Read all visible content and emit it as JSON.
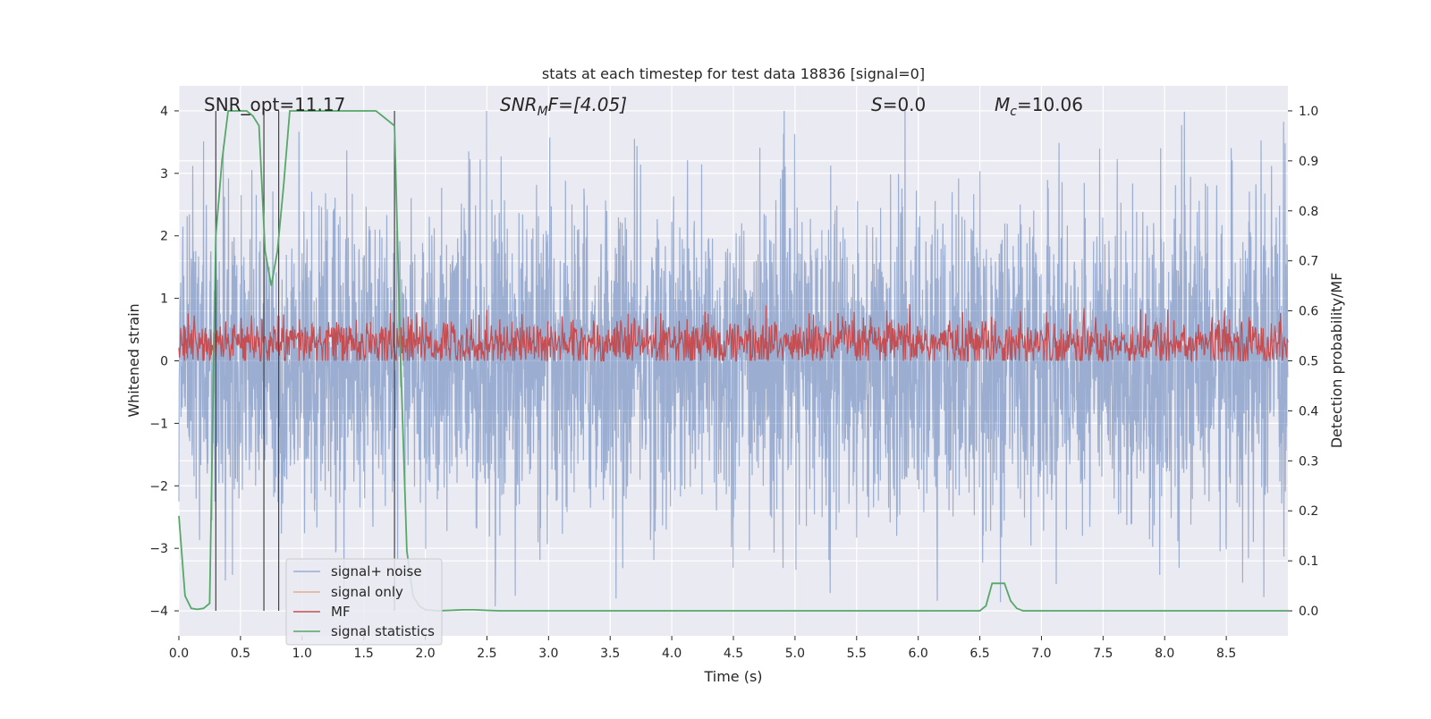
{
  "chart_data": {
    "type": "line",
    "title": "stats at each timestep for test data 18836 [signal=0]",
    "xlabel": "Time (s)",
    "ylabel": "Whitened strain",
    "y2label": "Detection probability/MF",
    "xlim": [
      0.0,
      9.0
    ],
    "ylim": [
      -4.4,
      4.4
    ],
    "y2lim": [
      -0.05,
      1.05
    ],
    "xticks": [
      0.0,
      0.5,
      1.0,
      1.5,
      2.0,
      2.5,
      3.0,
      3.5,
      4.0,
      4.5,
      5.0,
      5.5,
      6.0,
      6.5,
      7.0,
      7.5,
      8.0,
      8.5
    ],
    "xtick_labels": [
      "0.0",
      "0.5",
      "1.0",
      "1.5",
      "2.0",
      "2.5",
      "3.0",
      "3.5",
      "4.0",
      "4.5",
      "5.0",
      "5.5",
      "6.0",
      "6.5",
      "7.0",
      "7.5",
      "8.0",
      "8.5"
    ],
    "yticks": [
      -4,
      -3,
      -2,
      -1,
      0,
      1,
      2,
      3,
      4
    ],
    "ytick_labels": [
      "−4",
      "−3",
      "−2",
      "−1",
      "0",
      "1",
      "2",
      "3",
      "4"
    ],
    "y2ticks": [
      0.0,
      0.1,
      0.2,
      0.3,
      0.4,
      0.5,
      0.6,
      0.7,
      0.8,
      0.9,
      1.0
    ],
    "y2tick_labels": [
      "0.0",
      "0.1",
      "0.2",
      "0.3",
      "0.4",
      "0.5",
      "0.6",
      "0.7",
      "0.8",
      "0.9",
      "1.0"
    ],
    "grid": true,
    "legend_position": "lower-left",
    "annotations": [
      {
        "id": "snr-opt",
        "text": "SNR_opt=11.17"
      },
      {
        "id": "snr-mf",
        "base": "SNR",
        "sub": "M",
        "rest": "F=[4.05]"
      },
      {
        "id": "s-stat",
        "base": "S",
        "rest": "=0.0"
      },
      {
        "id": "mc",
        "base": "M",
        "sub": "c",
        "rest": "=10.06"
      }
    ],
    "vertical_markers": [
      0.3,
      0.69,
      0.81,
      1.75
    ],
    "series": [
      {
        "name": "signal+ noise",
        "axis": "left",
        "color": "#4c72b0",
        "description": "whitened strain noise, roughly ±3 with spikes to ±4",
        "approx_range": [
          -4.0,
          4.0
        ]
      },
      {
        "name": "signal only",
        "axis": "left",
        "color": "#dd8452",
        "values": []
      },
      {
        "name": "MF",
        "axis": "right",
        "color": "#c44e52",
        "approx_range": [
          0.5,
          0.62
        ]
      },
      {
        "name": "signal statistics",
        "axis": "right",
        "color": "#55a868",
        "x": [
          0.0,
          0.05,
          0.1,
          0.15,
          0.2,
          0.25,
          0.3,
          0.35,
          0.4,
          0.45,
          0.5,
          0.55,
          0.6,
          0.65,
          0.7,
          0.75,
          0.8,
          0.85,
          0.9,
          0.95,
          1.0,
          1.1,
          1.2,
          1.3,
          1.4,
          1.5,
          1.6,
          1.65,
          1.7,
          1.75,
          1.8,
          1.85,
          1.9,
          1.95,
          2.0,
          2.1,
          2.2,
          2.3,
          2.4,
          2.5,
          2.6,
          3.0,
          4.0,
          5.0,
          6.0,
          6.5,
          6.55,
          6.6,
          6.65,
          6.7,
          6.75,
          6.8,
          6.85,
          6.9,
          7.0,
          8.0,
          9.0
        ],
        "values": [
          0.19,
          0.03,
          0.005,
          0.003,
          0.005,
          0.015,
          0.75,
          0.9,
          1.0,
          1.0,
          1.0,
          1.0,
          0.99,
          0.97,
          0.72,
          0.65,
          0.72,
          0.85,
          1.0,
          1.0,
          1.0,
          1.0,
          1.0,
          1.0,
          1.0,
          1.0,
          1.0,
          0.99,
          0.98,
          0.97,
          0.5,
          0.12,
          0.03,
          0.01,
          0.002,
          0.0,
          0.001,
          0.002,
          0.002,
          0.001,
          0.0,
          0.0,
          0.0,
          0.0,
          0.0,
          0.0,
          0.01,
          0.055,
          0.055,
          0.055,
          0.02,
          0.005,
          0.0,
          0.0,
          0.0,
          0.0,
          0.0
        ]
      }
    ]
  }
}
